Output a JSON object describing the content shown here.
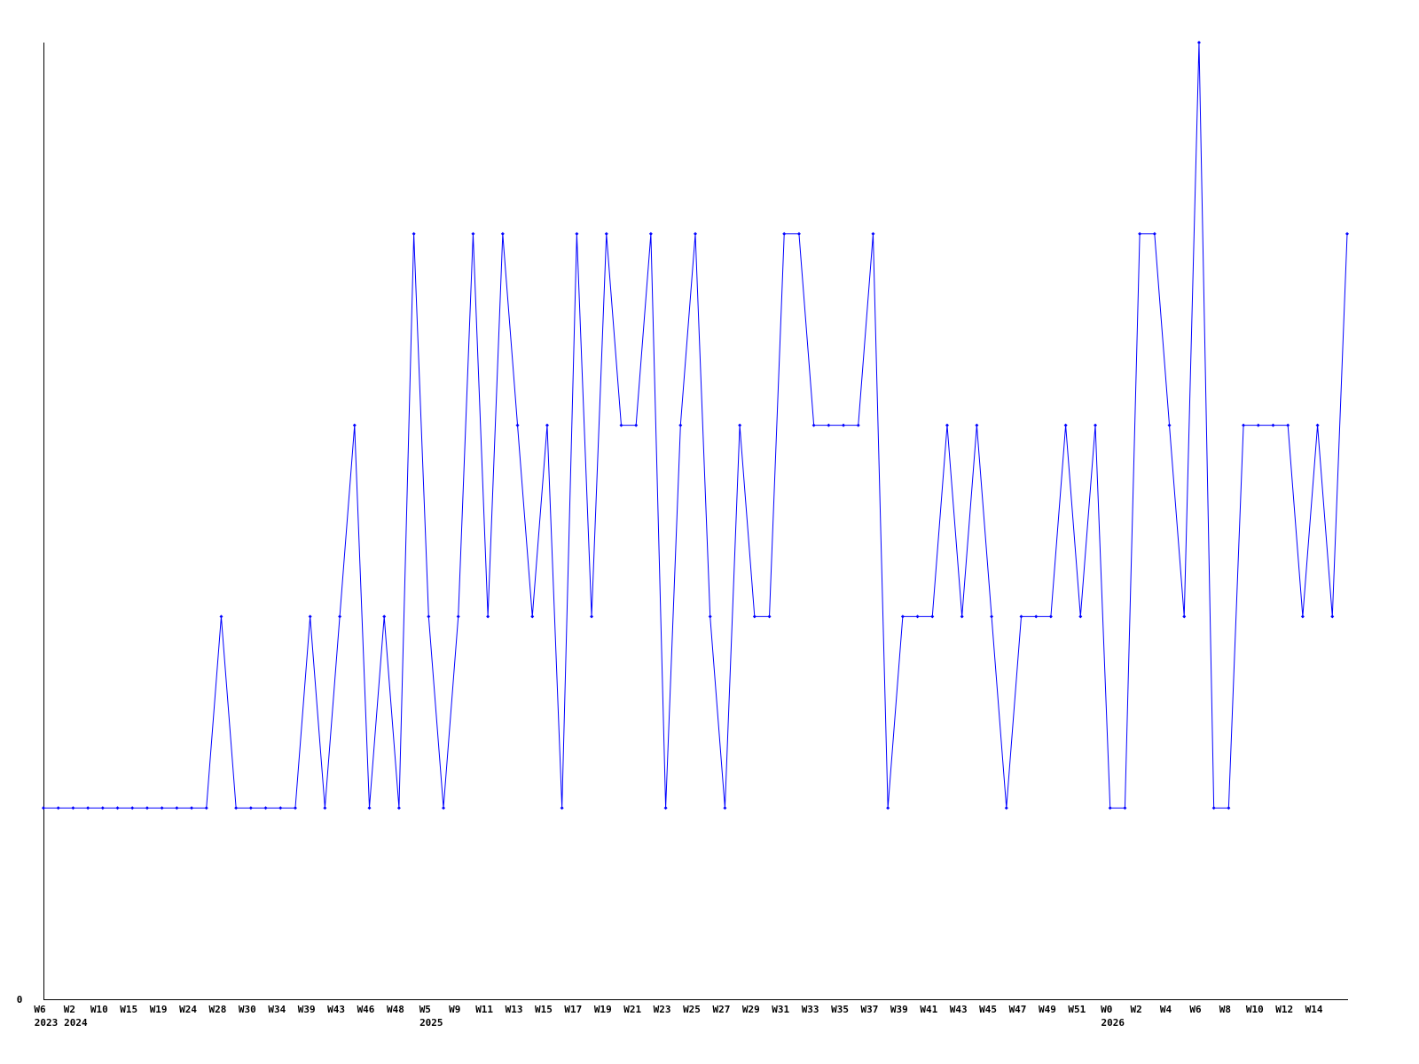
{
  "chart_data": {
    "type": "line",
    "title": "",
    "xlabel": "",
    "ylabel": "",
    "y_tick_labels": [
      "0"
    ],
    "ylim": [
      0,
      5
    ],
    "grid": false,
    "line_color": "#0000ff",
    "marker": "diamond",
    "x_tick_labels": [
      "W6",
      "W2",
      "W10",
      "W15",
      "W19",
      "W24",
      "W28",
      "W30",
      "W34",
      "W39",
      "W43",
      "W46",
      "W48",
      "W5",
      "W9",
      "W11",
      "W13",
      "W15",
      "W17",
      "W19",
      "W21",
      "W23",
      "W25",
      "W27",
      "W29",
      "W31",
      "W33",
      "W35",
      "W37",
      "W39",
      "W41",
      "W43",
      "W45",
      "W47",
      "W49",
      "W51",
      "W0",
      "W2",
      "W4",
      "W6",
      "W8",
      "W10",
      "W12",
      "W14"
    ],
    "x_tick_every": 2,
    "year_labels": [
      {
        "label": "2023",
        "tick_index": 0
      },
      {
        "label": "2024",
        "tick_index": 1
      },
      {
        "label": "2025",
        "tick_index": 13
      },
      {
        "label": "2026",
        "tick_index": 36
      }
    ],
    "values": [
      1,
      1,
      1,
      1,
      1,
      1,
      1,
      1,
      1,
      1,
      1,
      1,
      2,
      1,
      1,
      1,
      1,
      1,
      2,
      1,
      2,
      3,
      1,
      2,
      1,
      4,
      2,
      1,
      2,
      4,
      2,
      4,
      3,
      2,
      3,
      1,
      4,
      2,
      4,
      3,
      3,
      4,
      1,
      3,
      4,
      2,
      1,
      3,
      2,
      2,
      4,
      4,
      3,
      3,
      3,
      3,
      4,
      1,
      2,
      2,
      2,
      3,
      2,
      3,
      2,
      1,
      2,
      2,
      2,
      3,
      2,
      3,
      1,
      1,
      4,
      4,
      3,
      2,
      5,
      1,
      1,
      3,
      3,
      3,
      3,
      2,
      3,
      2,
      4
    ]
  }
}
